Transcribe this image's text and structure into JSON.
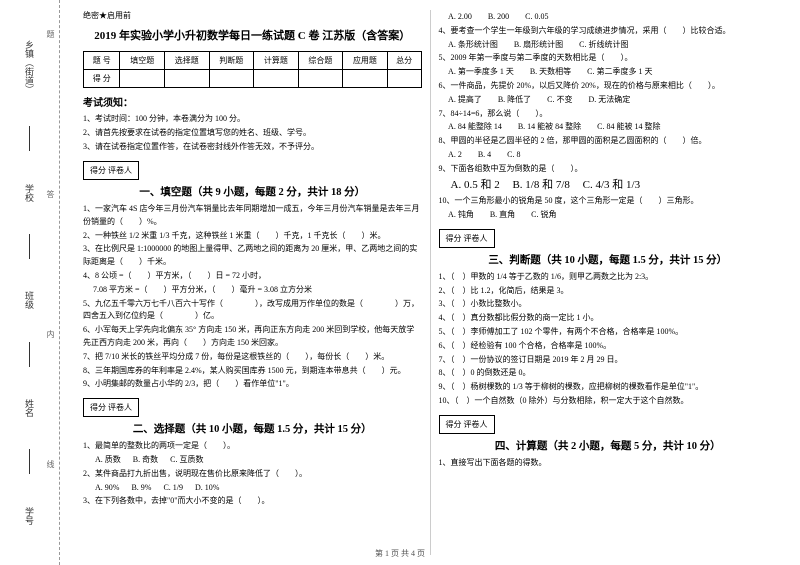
{
  "secret": "绝密★启用前",
  "title": "2019 年实验小学小升初数学每日一练试题 C 卷 江苏版（含答案）",
  "scoreHeaders": [
    "题 号",
    "填空题",
    "选择题",
    "判断题",
    "计算题",
    "综合题",
    "应用题",
    "总分"
  ],
  "scoreRow": "得 分",
  "noticeH": "考试须知：",
  "notices": [
    "1、考试时间：100 分钟，本卷满分为 100 分。",
    "2、请首先按要求在试卷的指定位置填写您的姓名、班级、学号。",
    "3、请在试卷指定位置作答，在试卷密封线外作答无效，不予评分。"
  ],
  "gradeBox": "得分  评卷人",
  "sec1H": "一、填空题（共 9 小题，每题 2 分，共计 18 分）",
  "sec1": [
    "1、一家汽车 4S 店今年三月份汽车销量比去年同期增加一成五，今年三月份汽车销量是去年三月份销量的（　　）%。",
    "2、一种铁丝 1/2 米重 1/3 千克，这种铁丝 1 米重（　　）千克，1 千克长（　　）米。",
    "3、在比例尺是 1:1000000 的地图上量得甲、乙两地之间的距离为 20 厘米，甲、乙两地之间的实际距离是（　　）千米。",
    "4、8 公顷 =（　　）平方米，（　　）日 = 72 小时，",
    "　 7.08 平方米 =（　　）平方分米，（　　）毫升 = 3.08 立方分米",
    "5、九亿五千零六万七千八百六十写作（　　　　），改写成用万作单位的数是（　　　　）万，四舍五入到亿位约是（　　　　）亿。",
    "6、小军每天上学先向北偏东 35° 方向走 150 米，再向正东方向走 200 米回到学校，他每天放学先正西方向走 200 米，再向（　　）方向走 150 米回家。",
    "7、把 7/10 米长的铁丝平均分成 7 份，每份是这根铁丝的（　　），每份长（　　）米。",
    "8、三年期国库券的年利率是 2.4%，某人购买国库券 1500 元，到期连本带息共（　　）元。",
    "9、小明集邮的数量占小华的 2/3，把（　　）看作单位\"1\"。"
  ],
  "sec2H": "二、选择题（共 10 小题，每题 1.5 分，共计 15 分）",
  "sec2q1": "1、最简单的整数比的两项一定是（　　）。",
  "sec2q1o": [
    "A. 质数",
    "B. 奇数",
    "C. 互质数"
  ],
  "sec2q2": "2、某件商品打九折出售，说明现在售价比原来降低了（　　）。",
  "sec2q2o": [
    "A. 90%",
    "B. 9%",
    "C. 1/9",
    "D. 10%"
  ],
  "sec2q3": "3、在下列各数中，去掉\"0\"而大小不变的是（　　）。",
  "rightTop": [
    "　 A. 2.00　　B. 200　　C. 0.05",
    "4、要考查一个学生一年级到六年级的学习成绩进步情况，采用（　　）比较合适。",
    "　 A. 条形统计图　　B. 扇形统计图　　C. 折线统计图",
    "5、2009 年第一季度与第二季度的天数相比是（　　）。",
    "　 A. 第一季度多 1 天　　B. 天数相等　　C. 第二季度多 1 天",
    "6、一件商品，先提价 20%，以后又降价 20%，现在的价格与原来相比（　　）。",
    "　 A. 提高了　　B. 降低了　　C. 不变　　D. 无法确定",
    "7、84÷14=6，那么说（　　）。",
    "　 A. 84 能整除 14　　B. 14 能被 84 整除　　C. 84 能被 14 整除",
    "8、甲圆的半径是乙圆半径的 2 倍，那甲圆的面积是乙圆面积的（　　）倍。",
    "　 A. 2　　B. 4　　C. 8",
    "9、下面各组数中互为倒数的是（　　）。"
  ],
  "sec2q9o": [
    "A. 0.5 和 2",
    "B. 1/8 和 7/8",
    "C. 4/3 和 1/3"
  ],
  "sec2q10": "10、一个三角形最小的锐角是 50 度，这个三角形一定是（　　）三角形。",
  "sec2q10o": "　 A. 钝角　　B. 直角　　C. 锐角",
  "sec3H": "三、判断题（共 10 小题，每题 1.5 分，共计 15 分）",
  "sec3": [
    "1、（　）甲数的 1/4 等于乙数的 1/6，则甲乙两数之比为 2:3。",
    "2、（　）比 1.2，化简后，结果是 3。",
    "3、（　）小数比整数小。",
    "4、（　）真分数都比假分数的商一定比 1 小。",
    "5、（　）李师傅加工了 102 个零件，有两个不合格，合格率是 100%。",
    "6、（　）经检验有 100 个合格，合格率是 100%。",
    "7、（　）一份协议的签订日期是 2019 年 2 月 29 日。",
    "8、（　）0 的倒数还是 0。",
    "9、（　）杨树棵数的 1/3 等于柳树的棵数，应把柳树的棵数看作是单位\"1\"。",
    "10、（　）一个自然数（0 除外）与分数相除，积一定大于这个自然数。"
  ],
  "sec4H": "四、计算题（共 2 小题，每题 5 分，共计 10 分）",
  "sec4q1": "1、直接写出下面各题的得数。",
  "footer": "第 1 页 共 4 页",
  "margins": [
    "学号",
    "姓名",
    "班级",
    "学校",
    "乡镇（街道）"
  ],
  "vtexts": [
    "题",
    "答",
    "内",
    "线"
  ]
}
